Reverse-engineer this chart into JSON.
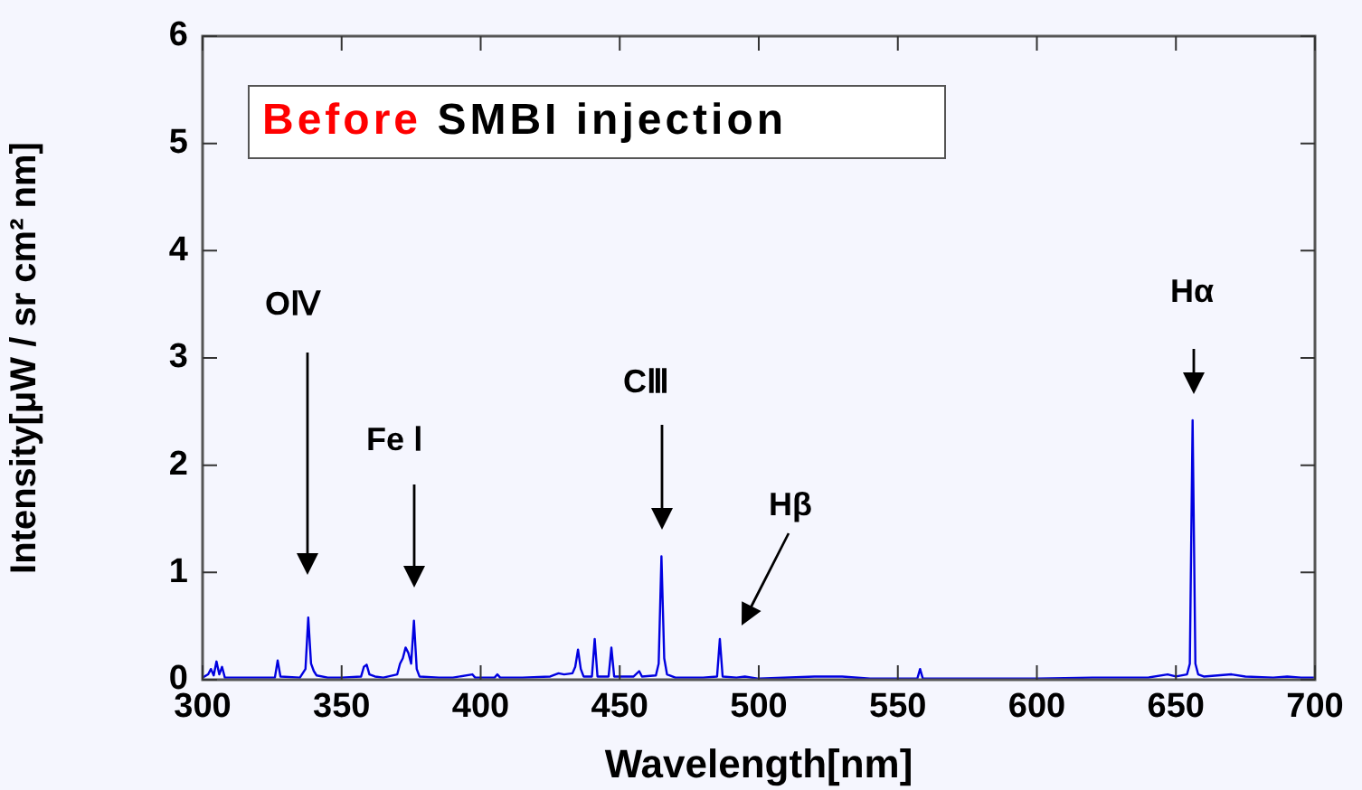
{
  "chart_data": {
    "type": "line",
    "title": "Before SMBI injection",
    "xlabel": "Wavelength[nm]",
    "ylabel": "Intensity[μW / sr cm² nm]",
    "xlim": [
      300,
      700
    ],
    "xticks": [
      300,
      350,
      400,
      450,
      500,
      550,
      600,
      650,
      700
    ],
    "ylim": [
      0,
      6
    ],
    "yticks": [
      0,
      1,
      2,
      3,
      4,
      5,
      6
    ],
    "grid": false,
    "legend": false,
    "marker": "none",
    "line_style": "solid",
    "annotations": [
      "OⅣ",
      "Fe Ⅰ",
      "CⅢ",
      "Hβ",
      "Hα"
    ],
    "series": [
      {
        "color": "#0000e0",
        "x": [
          300,
          302,
          303,
          304,
          305,
          306,
          307,
          308,
          312,
          320,
          326,
          327,
          328,
          335,
          337,
          338,
          339,
          340,
          341,
          345,
          350,
          357,
          358,
          359,
          360,
          362,
          365,
          370,
          371,
          372,
          373,
          374,
          375,
          376,
          377,
          378,
          385,
          390,
          397,
          398,
          405,
          406,
          407,
          415,
          425,
          428,
          430,
          433,
          434,
          435,
          436,
          437,
          440,
          441,
          442,
          446,
          447,
          448,
          455,
          457,
          458,
          463,
          464,
          465,
          466,
          467,
          470,
          480,
          485,
          486,
          487,
          492,
          495,
          500,
          520,
          530,
          540,
          557,
          558,
          559,
          580,
          600,
          620,
          640,
          647,
          650,
          654,
          655,
          656,
          657,
          658,
          660,
          665,
          670,
          675,
          685,
          690,
          695,
          700
        ],
        "values": [
          0.02,
          0.05,
          0.1,
          0.04,
          0.17,
          0.05,
          0.12,
          0.02,
          0.02,
          0.02,
          0.02,
          0.18,
          0.03,
          0.02,
          0.1,
          0.58,
          0.15,
          0.08,
          0.04,
          0.02,
          0.02,
          0.03,
          0.12,
          0.14,
          0.05,
          0.03,
          0.02,
          0.05,
          0.15,
          0.2,
          0.3,
          0.25,
          0.15,
          0.55,
          0.1,
          0.03,
          0.02,
          0.02,
          0.05,
          0.02,
          0.02,
          0.05,
          0.02,
          0.02,
          0.03,
          0.06,
          0.05,
          0.06,
          0.12,
          0.28,
          0.1,
          0.03,
          0.03,
          0.38,
          0.03,
          0.03,
          0.3,
          0.03,
          0.03,
          0.08,
          0.03,
          0.04,
          0.15,
          1.15,
          0.2,
          0.05,
          0.02,
          0.02,
          0.03,
          0.38,
          0.03,
          0.02,
          0.03,
          0.01,
          0.03,
          0.03,
          0.01,
          0.01,
          0.1,
          0.01,
          0.01,
          0.01,
          0.02,
          0.02,
          0.05,
          0.03,
          0.05,
          0.15,
          2.42,
          0.15,
          0.05,
          0.03,
          0.04,
          0.05,
          0.03,
          0.02,
          0.03,
          0.02,
          0.02
        ]
      }
    ]
  }
}
